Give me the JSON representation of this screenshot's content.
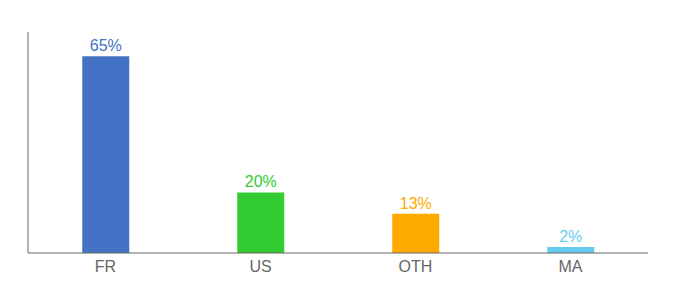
{
  "chart_data": {
    "type": "bar",
    "categories": [
      "FR",
      "US",
      "OTH",
      "MA"
    ],
    "values": [
      65,
      20,
      13,
      2
    ],
    "value_labels": [
      "65%",
      "20%",
      "13%",
      "2%"
    ],
    "colors": [
      "#4472c4",
      "#33cc33",
      "#ffaa00",
      "#66ccee"
    ],
    "ylim": [
      0,
      73
    ],
    "data_labels": true,
    "tick_labels": "x",
    "grid": false
  }
}
